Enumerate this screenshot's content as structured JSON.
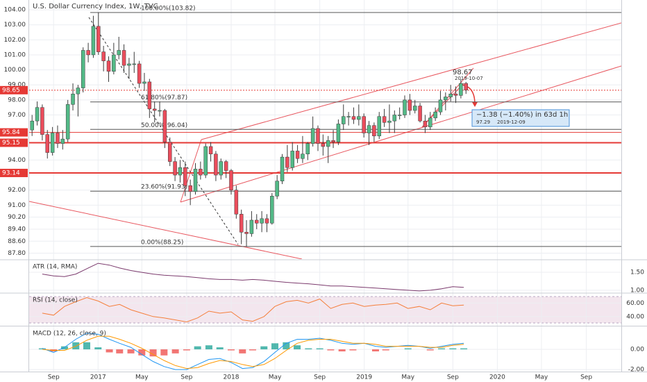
{
  "chart_data": [
    {
      "type": "candlestick",
      "title": "U.S. Dollar Currency Index, 1W, TVC",
      "up_color": "#53b987",
      "down_color": "#eb4d5c",
      "xlim": [
        "2016-06-26",
        "2020-12-06"
      ],
      "xticks": [
        {
          "value": "2016-09-01",
          "label": "Sep"
        },
        {
          "value": "2017-01-01",
          "label": "2017"
        },
        {
          "value": "2017-05-01",
          "label": "May"
        },
        {
          "value": "2017-09-01",
          "label": "Sep"
        },
        {
          "value": "2018-01-01",
          "label": "2018"
        },
        {
          "value": "2018-05-01",
          "label": "May"
        },
        {
          "value": "2018-09-01",
          "label": "Sep"
        },
        {
          "value": "2019-01-01",
          "label": "2019"
        },
        {
          "value": "2019-05-01",
          "label": "May"
        },
        {
          "value": "2019-09-01",
          "label": "Sep"
        },
        {
          "value": "2020-01-01",
          "label": "2020"
        },
        {
          "value": "2020-05-01",
          "label": "May"
        },
        {
          "value": "2020-09-01",
          "label": "Sep"
        }
      ],
      "ylim": [
        87.41,
        104.65
      ],
      "yticks": [
        {
          "value": 104,
          "label": "104.00"
        },
        {
          "value": 103,
          "label": "103.00"
        },
        {
          "value": 102,
          "label": "102.00"
        },
        {
          "value": 101,
          "label": "101.00"
        },
        {
          "value": 100,
          "label": "100.00"
        },
        {
          "value": 99,
          "label": "99.00"
        },
        {
          "value": 98,
          "label": "98.00"
        },
        {
          "value": 97,
          "label": "97.00"
        },
        {
          "value": 94,
          "label": "94.00"
        },
        {
          "value": 92,
          "label": "92.00"
        },
        {
          "value": 91,
          "label": "91.00"
        },
        {
          "value": 90.2,
          "label": "90.20"
        },
        {
          "value": 89.4,
          "label": "89.40"
        },
        {
          "value": 88.6,
          "label": "88.60"
        },
        {
          "value": 87.8,
          "label": "87.80"
        }
      ],
      "price_lines": [
        98.65,
        95.84,
        95.15,
        93.14
      ],
      "fib_levels": [
        {
          "value": 103.82,
          "label": "100.00%(103.82)"
        },
        {
          "value": 97.87,
          "label": "61.80%(97.87)"
        },
        {
          "value": 96.04,
          "label": "50.00%(96.04)"
        },
        {
          "value": 91.93,
          "label": "23.60%(91.93)"
        },
        {
          "value": 88.25,
          "label": "0.00%(88.25)"
        }
      ],
      "annotations": [
        "98.67",
        "2019-10-07",
        "−1.38 (−1.40%) in 63d 1h",
        "97.29",
        "2019-12-09"
      ],
      "x": [
        "2016-07-04",
        "2016-07-18",
        "2016-08-01",
        "2016-08-15",
        "2016-08-29",
        "2016-09-12",
        "2016-09-26",
        "2016-10-10",
        "2016-10-24",
        "2016-11-07",
        "2016-11-21",
        "2016-12-05",
        "2016-12-19",
        "2017-01-02",
        "2017-01-16",
        "2017-01-30",
        "2017-02-13",
        "2017-02-27",
        "2017-03-13",
        "2017-03-27",
        "2017-04-10",
        "2017-04-24",
        "2017-05-08",
        "2017-05-22",
        "2017-06-05",
        "2017-06-19",
        "2017-07-03",
        "2017-07-17",
        "2017-07-31",
        "2017-08-14",
        "2017-08-28",
        "2017-09-11",
        "2017-09-25",
        "2017-10-09",
        "2017-10-23",
        "2017-11-06",
        "2017-11-20",
        "2017-12-04",
        "2017-12-18",
        "2018-01-01",
        "2018-01-15",
        "2018-01-29",
        "2018-02-12",
        "2018-02-26",
        "2018-03-12",
        "2018-03-26",
        "2018-04-09",
        "2018-04-23",
        "2018-05-07",
        "2018-05-21",
        "2018-06-04",
        "2018-06-18",
        "2018-07-02",
        "2018-07-16",
        "2018-07-30",
        "2018-08-13",
        "2018-08-27",
        "2018-09-10",
        "2018-09-24",
        "2018-10-08",
        "2018-10-22",
        "2018-11-05",
        "2018-11-19",
        "2018-12-03",
        "2018-12-17",
        "2018-12-31",
        "2019-01-14",
        "2019-01-28",
        "2019-02-11",
        "2019-02-25",
        "2019-03-11",
        "2019-03-25",
        "2019-04-08",
        "2019-04-22",
        "2019-05-06",
        "2019-05-20",
        "2019-06-03",
        "2019-06-17",
        "2019-07-01",
        "2019-07-15",
        "2019-07-29",
        "2019-08-12",
        "2019-08-26",
        "2019-09-09",
        "2019-09-23",
        "2019-10-07"
      ],
      "candles": [
        [
          96.0,
          97.0,
          95.6,
          96.6
        ],
        [
          96.6,
          97.9,
          96.3,
          97.5
        ],
        [
          97.5,
          97.7,
          95.3,
          95.7
        ],
        [
          95.7,
          96.0,
          94.1,
          94.5
        ],
        [
          94.5,
          96.2,
          94.3,
          95.8
        ],
        [
          95.8,
          96.3,
          94.8,
          95.1
        ],
        [
          95.1,
          96.0,
          94.7,
          95.4
        ],
        [
          95.4,
          98.0,
          95.2,
          97.7
        ],
        [
          97.7,
          99.1,
          97.3,
          98.4
        ],
        [
          98.4,
          99.0,
          96.9,
          98.8
        ],
        [
          98.8,
          101.5,
          98.5,
          101.3
        ],
        [
          101.3,
          101.8,
          100.5,
          101.0
        ],
        [
          101.0,
          103.6,
          100.8,
          102.9
        ],
        [
          102.9,
          103.82,
          101.0,
          101.2
        ],
        [
          101.2,
          101.6,
          99.9,
          100.6
        ],
        [
          100.6,
          100.9,
          99.2,
          99.9
        ],
        [
          99.9,
          101.8,
          99.7,
          101.0
        ],
        [
          101.0,
          102.2,
          100.7,
          101.3
        ],
        [
          101.3,
          101.7,
          99.8,
          100.3
        ],
        [
          100.3,
          100.8,
          99.4,
          100.4
        ],
        [
          100.4,
          101.2,
          99.8,
          100.4
        ],
        [
          100.4,
          100.6,
          98.8,
          99.1
        ],
        [
          99.1,
          99.8,
          98.6,
          99.2
        ],
        [
          99.2,
          99.4,
          96.8,
          97.4
        ],
        [
          97.4,
          97.9,
          96.5,
          97.3
        ],
        [
          97.3,
          97.9,
          96.9,
          97.3
        ],
        [
          97.3,
          97.4,
          94.8,
          95.2
        ],
        [
          95.2,
          95.5,
          93.6,
          93.9
        ],
        [
          93.9,
          94.2,
          92.6,
          93.0
        ],
        [
          93.0,
          94.0,
          92.5,
          93.5
        ],
        [
          93.5,
          93.9,
          91.6,
          92.3
        ],
        [
          92.3,
          92.7,
          91.0,
          91.9
        ],
        [
          91.9,
          93.8,
          91.7,
          93.4
        ],
        [
          93.4,
          93.9,
          92.7,
          93.0
        ],
        [
          93.0,
          95.1,
          92.8,
          94.9
        ],
        [
          94.9,
          95.2,
          93.9,
          94.4
        ],
        [
          94.4,
          94.6,
          92.6,
          93.0
        ],
        [
          93.0,
          94.1,
          92.7,
          93.9
        ],
        [
          93.9,
          94.0,
          92.8,
          93.3
        ],
        [
          93.3,
          93.4,
          91.7,
          92.0
        ],
        [
          92.0,
          92.3,
          90.1,
          90.4
        ],
        [
          90.4,
          90.7,
          88.4,
          89.2
        ],
        [
          89.2,
          90.0,
          88.25,
          89.1
        ],
        [
          89.1,
          90.6,
          88.9,
          90.0
        ],
        [
          90.0,
          90.4,
          89.4,
          89.8
        ],
        [
          89.8,
          90.6,
          89.2,
          90.1
        ],
        [
          90.1,
          90.4,
          89.2,
          89.8
        ],
        [
          89.8,
          91.8,
          89.7,
          91.6
        ],
        [
          91.6,
          93.0,
          91.4,
          92.6
        ],
        [
          92.6,
          94.4,
          92.4,
          94.2
        ],
        [
          94.2,
          95.0,
          93.2,
          93.5
        ],
        [
          93.5,
          95.2,
          93.3,
          94.6
        ],
        [
          94.6,
          95.0,
          93.8,
          94.1
        ],
        [
          94.1,
          95.6,
          93.8,
          94.4
        ],
        [
          94.4,
          95.2,
          94.0,
          95.1
        ],
        [
          95.1,
          96.9,
          94.9,
          96.1
        ],
        [
          96.1,
          96.3,
          94.6,
          95.1
        ],
        [
          95.1,
          95.7,
          94.3,
          94.9
        ],
        [
          94.9,
          95.6,
          93.8,
          95.3
        ],
        [
          95.3,
          96.0,
          94.8,
          95.2
        ],
        [
          95.2,
          96.7,
          95.0,
          96.4
        ],
        [
          96.4,
          97.7,
          96.0,
          96.9
        ],
        [
          96.9,
          97.2,
          96.3,
          96.9
        ],
        [
          96.9,
          97.5,
          96.4,
          96.7
        ],
        [
          96.7,
          97.7,
          96.3,
          96.9
        ],
        [
          96.9,
          97.1,
          95.5,
          95.8
        ],
        [
          95.8,
          96.6,
          95.0,
          96.3
        ],
        [
          96.3,
          96.5,
          95.2,
          95.6
        ],
        [
          95.6,
          97.2,
          95.4,
          96.9
        ],
        [
          96.9,
          97.4,
          96.2,
          96.5
        ],
        [
          96.5,
          97.7,
          95.8,
          96.6
        ],
        [
          96.6,
          97.3,
          95.8,
          97.0
        ],
        [
          97.0,
          97.5,
          96.7,
          97.0
        ],
        [
          97.0,
          98.3,
          96.8,
          98.0
        ],
        [
          98.0,
          98.4,
          97.0,
          97.3
        ],
        [
          97.3,
          98.0,
          97.1,
          97.6
        ],
        [
          97.6,
          97.8,
          96.5,
          96.6
        ],
        [
          96.6,
          97.0,
          95.8,
          96.2
        ],
        [
          96.2,
          97.2,
          96.0,
          96.8
        ],
        [
          96.8,
          97.5,
          96.6,
          97.2
        ],
        [
          97.2,
          98.6,
          97.0,
          98.0
        ],
        [
          98.0,
          98.5,
          97.3,
          98.2
        ],
        [
          98.2,
          99.0,
          97.9,
          98.4
        ],
        [
          98.4,
          98.9,
          97.8,
          98.3
        ],
        [
          98.3,
          99.37,
          98.1,
          99.1
        ],
        [
          99.1,
          99.2,
          98.4,
          98.65
        ]
      ]
    },
    {
      "type": "line",
      "title": "ATR (14, RMA)",
      "ylim": [
        0.94,
        1.83
      ],
      "yticks": [
        {
          "value": 1.5,
          "label": "1.50"
        },
        {
          "value": 1,
          "label": "1.00"
        }
      ],
      "x": [
        "2016-08-01",
        "2016-09-01",
        "2016-10-01",
        "2016-11-01",
        "2016-12-01",
        "2017-01-01",
        "2017-02-01",
        "2017-03-01",
        "2017-04-01",
        "2017-05-01",
        "2017-06-01",
        "2017-07-01",
        "2017-08-01",
        "2017-09-01",
        "2017-10-01",
        "2017-11-01",
        "2017-12-01",
        "2018-01-01",
        "2018-02-01",
        "2018-03-01",
        "2018-04-01",
        "2018-05-01",
        "2018-06-01",
        "2018-07-01",
        "2018-08-01",
        "2018-09-01",
        "2018-10-01",
        "2018-11-01",
        "2018-12-01",
        "2019-01-01",
        "2019-02-01",
        "2019-03-01",
        "2019-04-01",
        "2019-05-01",
        "2019-06-01",
        "2019-07-01",
        "2019-08-01",
        "2019-09-01",
        "2019-10-01"
      ],
      "series": [
        {
          "color": "#7b3a6d",
          "values": [
            1.45,
            1.4,
            1.38,
            1.45,
            1.6,
            1.75,
            1.7,
            1.62,
            1.55,
            1.5,
            1.45,
            1.42,
            1.4,
            1.38,
            1.35,
            1.32,
            1.3,
            1.3,
            1.28,
            1.3,
            1.28,
            1.25,
            1.22,
            1.2,
            1.18,
            1.15,
            1.12,
            1.12,
            1.1,
            1.08,
            1.06,
            1.04,
            1.02,
            1.0,
            0.98,
            1.0,
            1.04,
            1.1,
            1.08
          ]
        }
      ]
    },
    {
      "type": "line",
      "title": "RSI (14, close)",
      "ylim": [
        27.4,
        73.7
      ],
      "yticks": [
        {
          "value": 60,
          "label": "60.00"
        },
        {
          "value": 40,
          "label": "40.00"
        }
      ],
      "x": [
        "2016-08-01",
        "2016-09-01",
        "2016-10-01",
        "2016-11-01",
        "2016-12-01",
        "2017-01-01",
        "2017-02-01",
        "2017-03-01",
        "2017-04-01",
        "2017-05-01",
        "2017-06-01",
        "2017-07-01",
        "2017-08-01",
        "2017-09-01",
        "2017-10-01",
        "2017-11-01",
        "2017-12-01",
        "2018-01-01",
        "2018-02-01",
        "2018-03-01",
        "2018-04-01",
        "2018-05-01",
        "2018-06-01",
        "2018-07-01",
        "2018-08-01",
        "2018-09-01",
        "2018-10-01",
        "2018-11-01",
        "2018-12-01",
        "2019-01-01",
        "2019-02-01",
        "2019-03-01",
        "2019-04-01",
        "2019-05-01",
        "2019-06-01",
        "2019-07-01",
        "2019-08-01",
        "2019-09-01",
        "2019-10-01"
      ],
      "series": [
        {
          "color": "#f57f3b",
          "values": [
            45,
            42,
            55,
            62,
            68,
            63,
            55,
            58,
            50,
            45,
            40,
            38,
            35,
            32,
            38,
            48,
            45,
            47,
            35,
            33,
            40,
            55,
            62,
            64,
            60,
            66,
            52,
            58,
            60,
            55,
            57,
            58,
            60,
            52,
            55,
            50,
            60,
            56,
            57
          ]
        }
      ]
    },
    {
      "type": "line",
      "title": "MACD (12, 26, close, 9)",
      "ylim": [
        -2.2,
        2.2
      ],
      "yticks": [
        {
          "value": 0,
          "label": "0.00"
        },
        {
          "value": -2,
          "label": "-2.00"
        }
      ],
      "x": [
        "2016-08-01",
        "2016-09-01",
        "2016-10-01",
        "2016-11-01",
        "2016-12-01",
        "2017-01-01",
        "2017-02-01",
        "2017-03-01",
        "2017-04-01",
        "2017-05-01",
        "2017-06-01",
        "2017-07-01",
        "2017-08-01",
        "2017-09-01",
        "2017-10-01",
        "2017-11-01",
        "2017-12-01",
        "2018-01-01",
        "2018-02-01",
        "2018-03-01",
        "2018-04-01",
        "2018-05-01",
        "2018-06-01",
        "2018-07-01",
        "2018-08-01",
        "2018-09-01",
        "2018-10-01",
        "2018-11-01",
        "2018-12-01",
        "2019-01-01",
        "2019-02-01",
        "2019-03-01",
        "2019-04-01",
        "2019-05-01",
        "2019-06-01",
        "2019-07-01",
        "2019-08-01",
        "2019-09-01",
        "2019-10-01"
      ],
      "histogram": {
        "positive_color": "#26a69a",
        "negative_color": "#ef5350",
        "values": [
          0.1,
          -0.2,
          0.3,
          0.7,
          0.7,
          0.2,
          -0.3,
          -0.4,
          -0.4,
          -0.6,
          -0.7,
          -0.6,
          -0.4,
          -0.1,
          0.3,
          0.4,
          0.2,
          -0.1,
          -0.4,
          -0.1,
          0.3,
          0.6,
          0.7,
          0.4,
          0.1,
          0.1,
          -0.1,
          -0.2,
          -0.1,
          0.0,
          -0.2,
          -0.1,
          0.0,
          0.1,
          0.0,
          -0.1,
          0.1,
          0.1,
          0.1
        ]
      },
      "series": [
        {
          "color": "#2196f3",
          "values": [
            0.1,
            -0.3,
            0.2,
            1.0,
            1.6,
            1.5,
            1.0,
            0.6,
            0.2,
            -0.5,
            -1.2,
            -1.7,
            -2.0,
            -2.0,
            -1.5,
            -1.0,
            -0.9,
            -1.3,
            -1.9,
            -1.8,
            -1.2,
            -0.3,
            0.6,
            1.0,
            1.0,
            1.1,
            0.9,
            0.6,
            0.5,
            0.6,
            0.3,
            0.2,
            0.3,
            0.4,
            0.3,
            0.1,
            0.3,
            0.5,
            0.6
          ]
        },
        {
          "color": "#ff9800",
          "values": [
            0.0,
            -0.1,
            -0.1,
            0.3,
            0.9,
            1.3,
            1.3,
            1.0,
            0.6,
            0.1,
            -0.5,
            -1.1,
            -1.6,
            -1.9,
            -1.8,
            -1.4,
            -1.1,
            -1.2,
            -1.5,
            -1.7,
            -1.5,
            -0.9,
            -0.1,
            0.6,
            0.9,
            1.0,
            1.0,
            0.8,
            0.6,
            0.6,
            0.5,
            0.3,
            0.3,
            0.3,
            0.3,
            0.2,
            0.2,
            0.4,
            0.5
          ]
        }
      ]
    }
  ]
}
